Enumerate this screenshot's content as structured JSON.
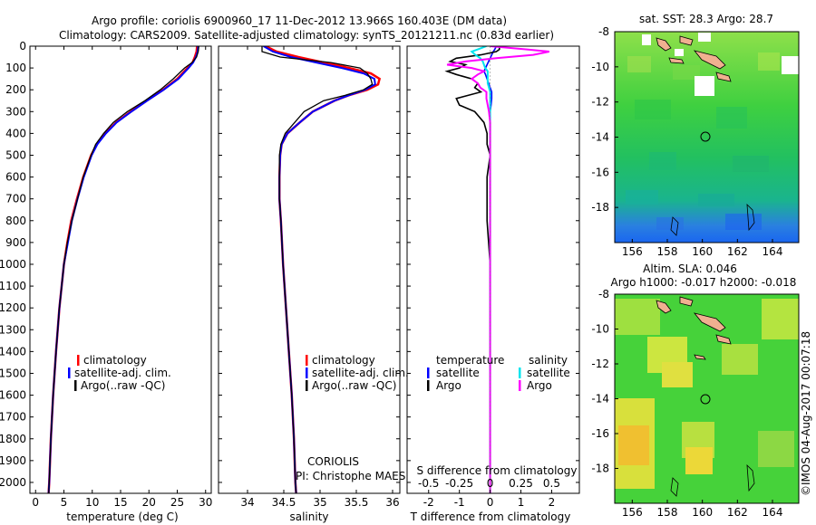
{
  "header": {
    "line1": "Argo profile: coriolis 6900960_17 11-Dec-2012 13.966S 160.403E (DM data)",
    "line2": "Climatology: CARS2009. Satellite-adjusted climatology: synTS_20121211.nc (0.83d earlier)"
  },
  "colors": {
    "clim": "#ff0000",
    "sat": "#0000ff",
    "argo": "#000000",
    "sal_sat": "#00e5ee",
    "sal_argo": "#ff00ff"
  },
  "chart_data": [
    {
      "type": "line",
      "xlabel": "temperature (deg C)",
      "xlim": [
        -1,
        31
      ],
      "xticks": [
        0,
        5,
        10,
        15,
        20,
        25,
        30
      ],
      "ylim": [
        2050,
        0
      ],
      "yticks": [
        0,
        100,
        200,
        300,
        400,
        500,
        600,
        700,
        800,
        900,
        1000,
        1100,
        1200,
        1300,
        1400,
        1500,
        1600,
        1700,
        1800,
        1900,
        2000
      ],
      "legend": [
        "climatology",
        "satellite-adj. clim.",
        "Argo(..raw -QC)"
      ],
      "depth": [
        0,
        25,
        50,
        75,
        100,
        150,
        200,
        250,
        300,
        350,
        400,
        450,
        500,
        600,
        700,
        800,
        900,
        1000,
        1200,
        1400,
        1600,
        1800,
        2000,
        2050
      ],
      "series": [
        {
          "name": "climatology",
          "values": [
            28.5,
            28.4,
            28.1,
            27.7,
            26.8,
            25.0,
            22.5,
            19.6,
            16.8,
            14.2,
            12.3,
            10.8,
            9.8,
            8.4,
            7.3,
            6.3,
            5.6,
            5.0,
            4.2,
            3.6,
            3.1,
            2.7,
            2.4,
            2.3
          ]
        },
        {
          "name": "satellite-adj. clim.",
          "values": [
            28.7,
            28.6,
            28.3,
            27.8,
            27.0,
            25.2,
            22.6,
            19.7,
            16.9,
            14.3,
            12.4,
            10.9,
            9.9,
            8.5,
            7.4,
            6.4,
            5.7,
            5.0,
            4.2,
            3.6,
            3.1,
            2.7,
            2.4,
            2.3
          ]
        },
        {
          "name": "Argo(..raw -QC)",
          "values": [
            28.8,
            28.7,
            28.4,
            27.6,
            26.3,
            24.3,
            22.0,
            19.3,
            16.2,
            13.7,
            12.0,
            10.6,
            9.8,
            8.4,
            7.4,
            6.4,
            5.6,
            5.0,
            4.2,
            3.6,
            3.1,
            2.7,
            2.4,
            2.3
          ]
        }
      ]
    },
    {
      "type": "line",
      "xlabel": "salinity",
      "xlim": [
        33.6,
        36.1
      ],
      "xticks": [
        34,
        34.5,
        35,
        35.5,
        36
      ],
      "ylim": [
        2050,
        0
      ],
      "legend": [
        "climatology",
        "satellite-adj. clim.",
        "Argo(..raw -QC)"
      ],
      "annotation": [
        "CORIOLIS",
        "PI: Christophe MAES"
      ],
      "depth": [
        0,
        25,
        50,
        75,
        100,
        125,
        150,
        175,
        200,
        225,
        250,
        300,
        350,
        400,
        450,
        500,
        600,
        700,
        800,
        1000,
        1200,
        1400,
        1600,
        1800,
        2000,
        2050
      ],
      "series": [
        {
          "name": "climatology",
          "values": [
            34.25,
            34.4,
            34.7,
            35.05,
            35.4,
            35.7,
            35.82,
            35.8,
            35.65,
            35.4,
            35.2,
            34.9,
            34.72,
            34.55,
            34.47,
            34.45,
            34.44,
            34.44,
            34.46,
            34.49,
            34.53,
            34.57,
            34.61,
            34.64,
            34.66,
            34.67
          ]
        },
        {
          "name": "satellite-adj. clim.",
          "values": [
            34.22,
            34.35,
            34.6,
            34.95,
            35.3,
            35.6,
            35.75,
            35.76,
            35.62,
            35.4,
            35.2,
            34.9,
            34.72,
            34.55,
            34.47,
            34.45,
            34.44,
            34.44,
            34.46,
            34.49,
            34.53,
            34.57,
            34.61,
            34.64,
            34.66,
            34.67
          ]
        },
        {
          "name": "Argo(..raw -QC)",
          "values": [
            34.2,
            34.2,
            34.45,
            35.15,
            35.55,
            35.65,
            35.7,
            35.72,
            35.6,
            35.35,
            35.05,
            34.78,
            34.65,
            34.52,
            34.46,
            34.44,
            34.44,
            34.44,
            34.46,
            34.49,
            34.53,
            34.57,
            34.61,
            34.64,
            34.66,
            34.67
          ]
        }
      ]
    },
    {
      "type": "line",
      "xlabel": "T difference from climatology",
      "xlim": [
        -2.7,
        2.9
      ],
      "xticks": [
        -2,
        -1,
        0,
        1,
        2
      ],
      "top_label": "S difference from climatology",
      "top_ticks": [
        -0.5,
        -0.25,
        0,
        0.25,
        0.5
      ],
      "ylim": [
        2050,
        0
      ],
      "legend_temperature": [
        "temperature",
        "satellite",
        "Argo"
      ],
      "legend_salinity": [
        "salinity",
        "satellite",
        "Argo"
      ],
      "depth": [
        0,
        15,
        25,
        40,
        55,
        70,
        85,
        100,
        115,
        130,
        150,
        170,
        190,
        210,
        240,
        270,
        300,
        350,
        400,
        450,
        500,
        600,
        800,
        1000,
        1500,
        2000,
        2050
      ],
      "series": [
        {
          "name": "temperature satellite",
          "values": [
            0.2,
            0.15,
            0.1,
            0.05,
            0.0,
            -0.05,
            -0.1,
            -0.15,
            -0.2,
            -0.15,
            -0.1,
            -0.05,
            0.0,
            0.05,
            0.05,
            0.03,
            0.0,
            0.0,
            0.0,
            0.0,
            0.0,
            0.0,
            0.0,
            0.0,
            0.0,
            0.0,
            0.0
          ]
        },
        {
          "name": "temperature Argo",
          "values": [
            0.3,
            0.3,
            0.2,
            -0.3,
            -1.1,
            -1.3,
            -0.8,
            -1.0,
            -1.4,
            -1.1,
            -0.6,
            -0.4,
            -0.5,
            -0.3,
            -1.1,
            -1.0,
            -0.5,
            -0.2,
            -0.1,
            -0.1,
            0.0,
            -0.1,
            -0.1,
            0.0,
            0.0,
            0.0,
            0.0
          ]
        },
        {
          "name": "salinity satellite",
          "values": [
            -0.03,
            -0.1,
            -0.15,
            -0.12,
            -0.08,
            -0.06,
            -0.05,
            -0.04,
            -0.02,
            -0.02,
            -0.02,
            -0.02,
            -0.01,
            0.0,
            0.0,
            0.0,
            0.0,
            0.0,
            0.0,
            0.0,
            0.0,
            0.0,
            0.0,
            0.0,
            0.0,
            0.0,
            0.0
          ]
        },
        {
          "name": "salinity Argo",
          "values": [
            0.0,
            0.3,
            0.48,
            0.35,
            0.05,
            -0.2,
            -0.35,
            -0.15,
            -0.05,
            -0.1,
            -0.15,
            -0.1,
            -0.08,
            -0.03,
            -0.03,
            -0.02,
            -0.01,
            0.0,
            0.0,
            0.0,
            0.0,
            0.0,
            0.0,
            0.0,
            0.0,
            0.0,
            0.0
          ]
        }
      ]
    },
    {
      "type": "heatmap",
      "title": "sat. SST: 28.3  Argo: 28.7",
      "xticks": [
        156,
        158,
        160,
        162,
        164
      ],
      "yticks": [
        -8,
        -10,
        -12,
        -14,
        -16,
        -18
      ],
      "lon_range": [
        155,
        165.5
      ],
      "lat_range": [
        -20,
        -8
      ],
      "profile_marker": [
        160.4,
        -14.0
      ]
    },
    {
      "type": "heatmap",
      "title": "Altim. SLA: 0.046",
      "subtitle": "Argo h1000: -0.017  h2000: -0.018",
      "xticks": [
        156,
        158,
        160,
        162,
        164
      ],
      "yticks": [
        -8,
        -10,
        -12,
        -14,
        -16,
        -18
      ],
      "lon_range": [
        155,
        165.5
      ],
      "lat_range": [
        -20,
        -8
      ],
      "profile_marker": [
        160.4,
        -14.0
      ]
    }
  ],
  "footer": {
    "stamp": "©IMOS 04-Aug-2017 00:07:18"
  }
}
